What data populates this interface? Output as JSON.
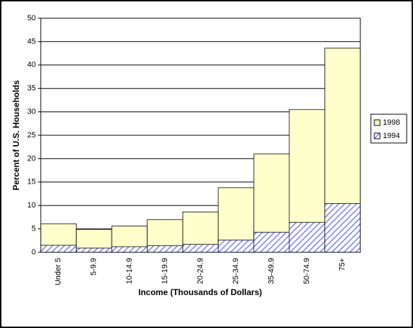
{
  "chart_data": {
    "type": "bar",
    "overlap": true,
    "x_label": "Income (Thousands of Dollars)",
    "y_label": "Percent of U.S. Households",
    "categories": [
      "Under 5",
      "5-9.9",
      "10-14.9",
      "15-19.9",
      "20-24.9",
      "25-34.9",
      "35-49.9",
      "50-74.9",
      "75+"
    ],
    "series": [
      {
        "name": "1998",
        "color": "#ffffcc",
        "values": [
          6.1,
          4.9,
          5.6,
          7.0,
          8.6,
          13.8,
          21.0,
          30.5,
          43.6
        ]
      },
      {
        "name": "1994",
        "color": "#6666ff",
        "hatch": true,
        "values": [
          1.5,
          0.9,
          1.2,
          1.4,
          1.7,
          2.6,
          4.3,
          6.4,
          10.4
        ]
      }
    ],
    "ylim": [
      0,
      50
    ],
    "yticks": [
      0,
      5,
      10,
      15,
      20,
      25,
      30,
      35,
      40,
      45,
      50
    ],
    "grid": true,
    "legend": "right"
  }
}
